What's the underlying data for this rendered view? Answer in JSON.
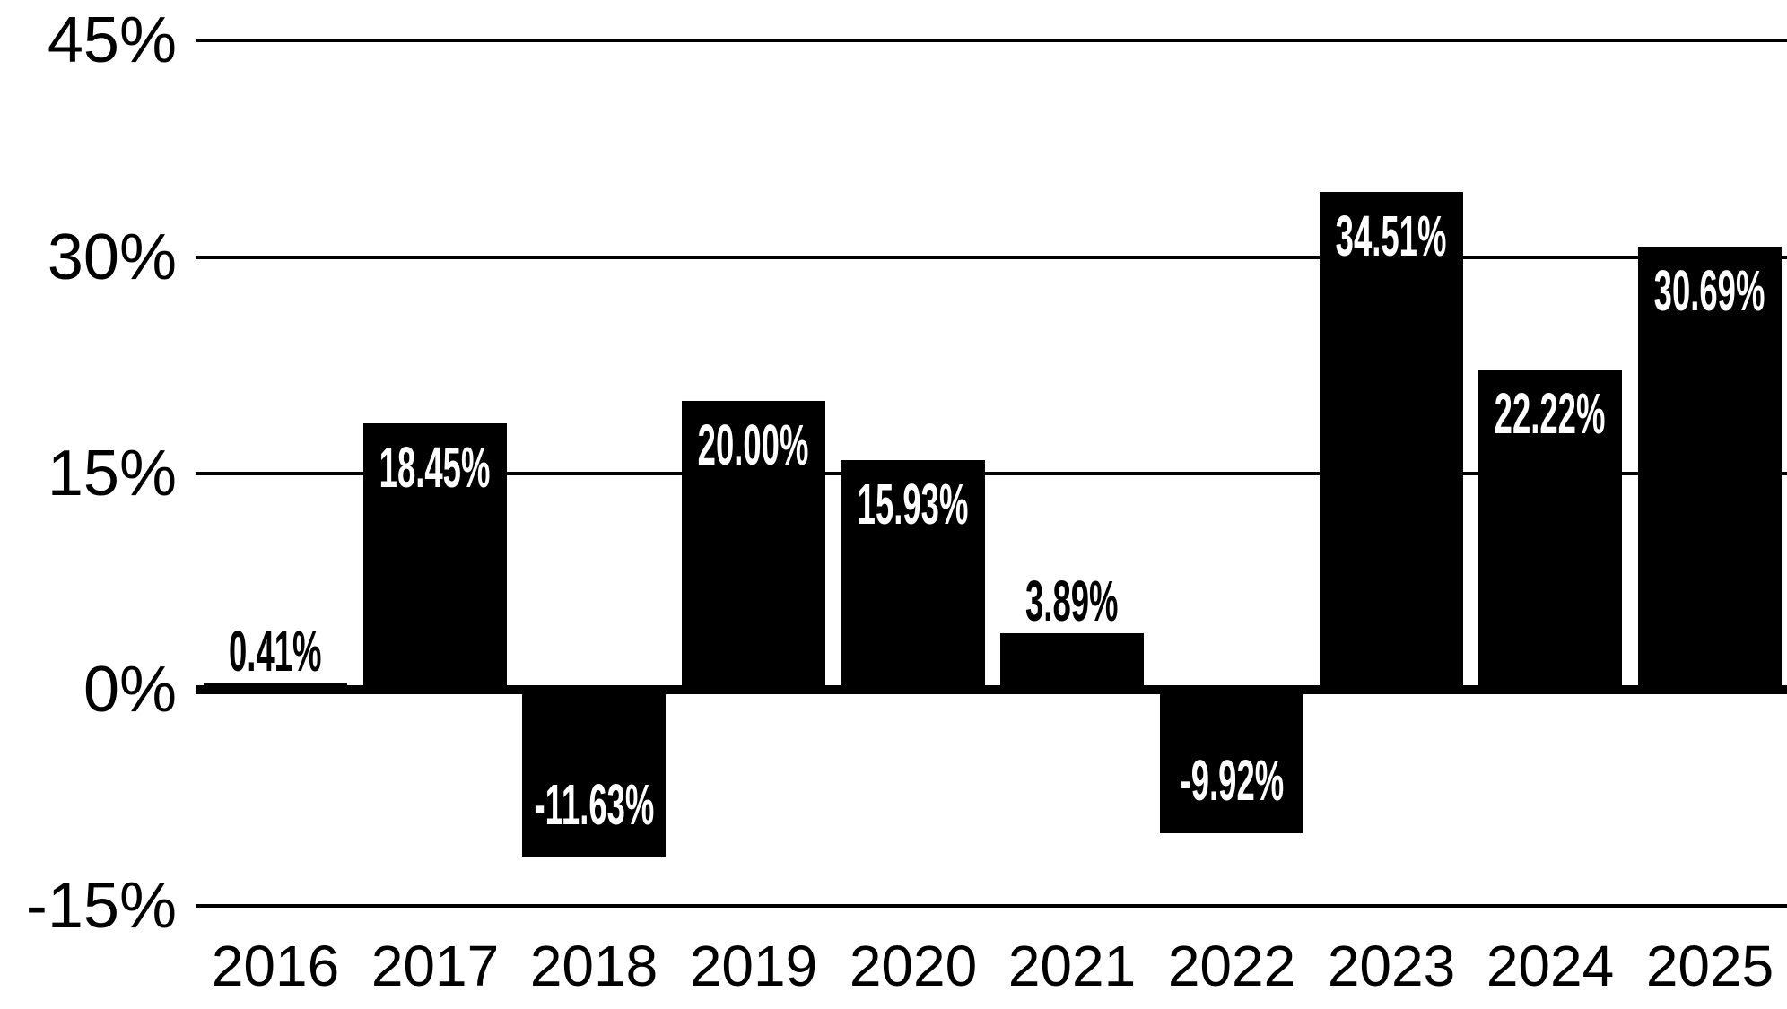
{
  "chart_data": {
    "type": "bar",
    "title": "",
    "xlabel": "",
    "ylabel": "",
    "categories": [
      "2016",
      "2017",
      "2018",
      "2019",
      "2020",
      "2021",
      "2022",
      "2023",
      "2024",
      "2025"
    ],
    "values": [
      0.41,
      18.45,
      -11.63,
      20.0,
      15.93,
      3.89,
      -9.92,
      34.51,
      22.22,
      30.69
    ],
    "value_labels": [
      "0.41%",
      "18.45%",
      "-11.63%",
      "20.00%",
      "15.93%",
      "3.89%",
      "-9.92%",
      "34.51%",
      "22.22%",
      "30.69%"
    ],
    "ylim": [
      -15,
      45
    ],
    "yticks": [
      45,
      30,
      15,
      0,
      -15
    ],
    "ytick_labels": [
      "45%",
      "30%",
      "15%",
      "0%",
      "-15%"
    ],
    "grid": true,
    "legend": false,
    "bar_color": "#000000",
    "background_color": "#ffffff",
    "label_color_inside": "#ffffff",
    "label_color_outside": "#000000",
    "inside_label_threshold": 8
  }
}
